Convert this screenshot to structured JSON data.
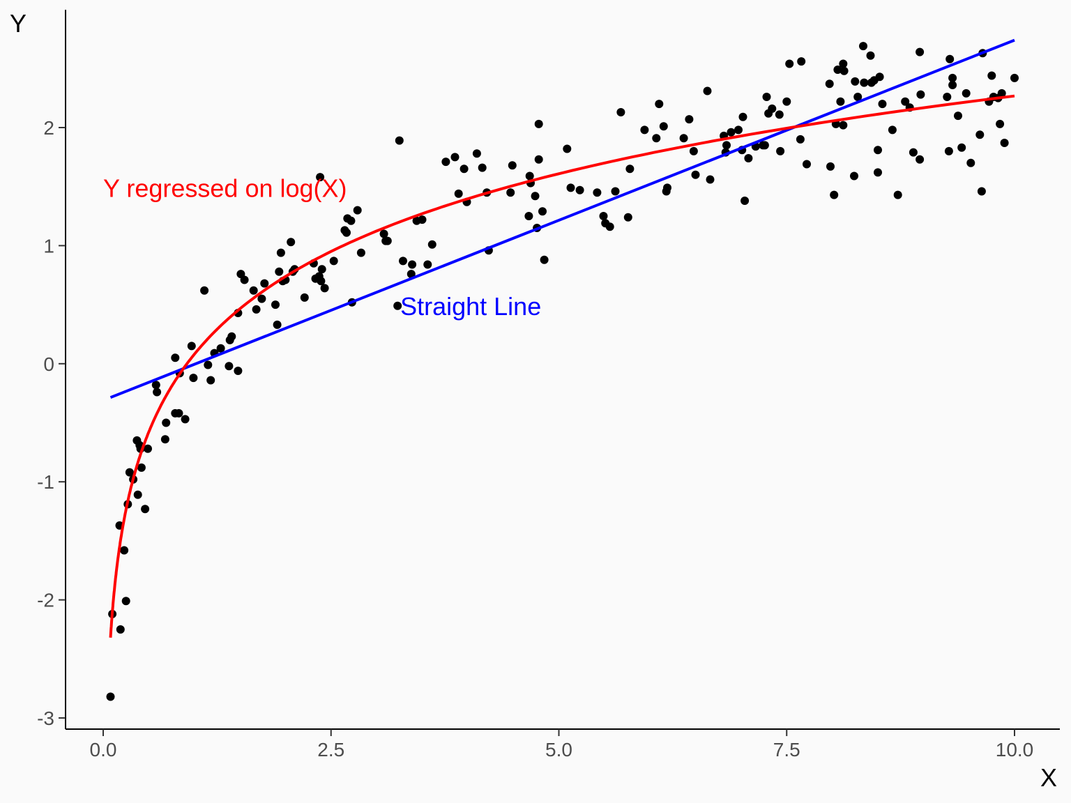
{
  "chart_data": {
    "type": "scatter",
    "title": "",
    "xlabel": "X",
    "ylabel": "Y",
    "xlim": [
      -0.2,
      10.2
    ],
    "ylim": [
      -3.1,
      3.0
    ],
    "xticks": [
      0,
      2.5,
      5,
      7.5,
      10
    ],
    "xtick_labels": [
      "0.0",
      "2.5",
      "5.0",
      "7.5",
      "10.0"
    ],
    "yticks": [
      -3,
      -2,
      -1,
      0,
      1,
      2
    ],
    "ytick_labels": [
      "-3",
      "-2",
      "-1",
      "0",
      "1",
      "2"
    ],
    "colors": {
      "points": "#000000",
      "straight": "#0000ff",
      "log": "#ff0000",
      "background": "#fafafa",
      "axis": "#000000"
    },
    "fits": {
      "straight": {
        "name": "Straight Line",
        "intercept": -0.31,
        "slope": 0.305,
        "x_range": [
          0.08,
          10
        ]
      },
      "log": {
        "name": "Y regressed on log(X)",
        "intercept": 0.08,
        "slope": 0.95,
        "x_range": [
          0.08,
          10
        ]
      }
    },
    "annotations": [
      {
        "key": "log",
        "text": "Y regressed on log(X)",
        "x": 0.0,
        "y": 1.49
      },
      {
        "key": "straight",
        "text": "Straight Line",
        "x": 3.26,
        "y": 0.49
      }
    ],
    "points": [
      [
        0.08,
        -2.82
      ],
      [
        0.1,
        -2.12
      ],
      [
        0.18,
        -1.37
      ],
      [
        0.19,
        -2.25
      ],
      [
        0.23,
        -1.58
      ],
      [
        0.25,
        -2.01
      ],
      [
        0.27,
        -1.19
      ],
      [
        0.29,
        -0.92
      ],
      [
        0.33,
        -0.98
      ],
      [
        0.37,
        -0.65
      ],
      [
        0.38,
        -1.11
      ],
      [
        0.4,
        -0.69
      ],
      [
        0.41,
        -0.72
      ],
      [
        0.42,
        -0.88
      ],
      [
        0.46,
        -1.23
      ],
      [
        0.49,
        -0.72
      ],
      [
        0.58,
        -0.18
      ],
      [
        0.59,
        -0.24
      ],
      [
        0.68,
        -0.64
      ],
      [
        0.69,
        -0.5
      ],
      [
        0.79,
        -0.42
      ],
      [
        0.79,
        0.05
      ],
      [
        0.83,
        -0.42
      ],
      [
        0.84,
        -0.08
      ],
      [
        0.9,
        -0.47
      ],
      [
        0.97,
        0.15
      ],
      [
        0.99,
        -0.12
      ],
      [
        1.11,
        0.62
      ],
      [
        1.15,
        -0.01
      ],
      [
        1.18,
        -0.14
      ],
      [
        1.22,
        0.09
      ],
      [
        1.29,
        0.13
      ],
      [
        1.38,
        -0.02
      ],
      [
        1.39,
        0.2
      ],
      [
        1.41,
        0.23
      ],
      [
        1.48,
        -0.06
      ],
      [
        1.48,
        0.43
      ],
      [
        1.51,
        0.76
      ],
      [
        1.55,
        0.71
      ],
      [
        1.65,
        0.62
      ],
      [
        1.68,
        0.46
      ],
      [
        1.74,
        0.55
      ],
      [
        1.77,
        0.68
      ],
      [
        1.89,
        0.5
      ],
      [
        1.91,
        0.33
      ],
      [
        1.93,
        0.78
      ],
      [
        1.95,
        0.94
      ],
      [
        1.97,
        0.7
      ],
      [
        2.0,
        0.71
      ],
      [
        2.06,
        1.03
      ],
      [
        2.08,
        0.78
      ],
      [
        2.1,
        0.8
      ],
      [
        2.21,
        0.56
      ],
      [
        2.31,
        0.85
      ],
      [
        2.33,
        0.72
      ],
      [
        2.37,
        0.74
      ],
      [
        2.38,
        1.58
      ],
      [
        2.39,
        0.7
      ],
      [
        2.4,
        0.8
      ],
      [
        2.43,
        0.64
      ],
      [
        2.53,
        0.87
      ],
      [
        2.65,
        1.13
      ],
      [
        2.67,
        1.11
      ],
      [
        2.68,
        1.23
      ],
      [
        2.72,
        1.21
      ],
      [
        2.73,
        0.52
      ],
      [
        2.79,
        1.3
      ],
      [
        2.83,
        0.94
      ],
      [
        3.08,
        1.1
      ],
      [
        3.1,
        1.04
      ],
      [
        3.12,
        1.04
      ],
      [
        3.23,
        0.49
      ],
      [
        3.25,
        1.89
      ],
      [
        3.29,
        0.87
      ],
      [
        3.38,
        0.76
      ],
      [
        3.39,
        0.84
      ],
      [
        3.44,
        1.21
      ],
      [
        3.5,
        1.22
      ],
      [
        3.56,
        0.84
      ],
      [
        3.61,
        1.01
      ],
      [
        3.76,
        1.71
      ],
      [
        3.86,
        1.75
      ],
      [
        3.9,
        1.44
      ],
      [
        3.96,
        1.65
      ],
      [
        3.99,
        1.37
      ],
      [
        4.1,
        1.78
      ],
      [
        4.16,
        1.66
      ],
      [
        4.21,
        1.45
      ],
      [
        4.23,
        0.96
      ],
      [
        4.47,
        1.45
      ],
      [
        4.49,
        1.68
      ],
      [
        4.67,
        1.25
      ],
      [
        4.68,
        1.59
      ],
      [
        4.69,
        1.53
      ],
      [
        4.74,
        1.42
      ],
      [
        4.76,
        1.15
      ],
      [
        4.78,
        1.73
      ],
      [
        4.78,
        2.03
      ],
      [
        4.82,
        1.29
      ],
      [
        4.84,
        0.88
      ],
      [
        5.09,
        1.82
      ],
      [
        5.13,
        1.49
      ],
      [
        5.23,
        1.47
      ],
      [
        5.42,
        1.45
      ],
      [
        5.49,
        1.25
      ],
      [
        5.51,
        1.19
      ],
      [
        5.56,
        1.16
      ],
      [
        5.62,
        1.46
      ],
      [
        5.68,
        2.13
      ],
      [
        5.76,
        1.24
      ],
      [
        5.78,
        1.65
      ],
      [
        5.94,
        1.98
      ],
      [
        6.07,
        1.91
      ],
      [
        6.1,
        2.2
      ],
      [
        6.15,
        2.01
      ],
      [
        6.18,
        1.46
      ],
      [
        6.19,
        1.49
      ],
      [
        6.37,
        1.91
      ],
      [
        6.43,
        2.07
      ],
      [
        6.48,
        1.8
      ],
      [
        6.5,
        1.6
      ],
      [
        6.63,
        2.31
      ],
      [
        6.66,
        1.56
      ],
      [
        6.81,
        1.93
      ],
      [
        6.83,
        1.79
      ],
      [
        6.84,
        1.85
      ],
      [
        6.89,
        1.96
      ],
      [
        6.97,
        1.98
      ],
      [
        7.02,
        2.09
      ],
      [
        7.01,
        1.81
      ],
      [
        7.04,
        1.38
      ],
      [
        7.08,
        1.74
      ],
      [
        7.16,
        1.84
      ],
      [
        7.24,
        1.85
      ],
      [
        7.26,
        1.85
      ],
      [
        7.28,
        2.26
      ],
      [
        7.3,
        2.12
      ],
      [
        7.34,
        2.16
      ],
      [
        7.42,
        2.11
      ],
      [
        7.43,
        1.8
      ],
      [
        7.5,
        2.22
      ],
      [
        7.53,
        2.54
      ],
      [
        7.65,
        1.9
      ],
      [
        7.66,
        2.56
      ],
      [
        7.72,
        1.69
      ],
      [
        7.97,
        2.37
      ],
      [
        7.98,
        1.67
      ],
      [
        8.02,
        1.43
      ],
      [
        8.04,
        2.03
      ],
      [
        8.06,
        2.49
      ],
      [
        8.09,
        2.22
      ],
      [
        8.12,
        2.54
      ],
      [
        8.13,
        2.48
      ],
      [
        8.12,
        2.02
      ],
      [
        8.24,
        1.59
      ],
      [
        8.25,
        2.39
      ],
      [
        8.28,
        2.26
      ],
      [
        8.34,
        2.69
      ],
      [
        8.35,
        2.38
      ],
      [
        8.42,
        2.61
      ],
      [
        8.43,
        2.38
      ],
      [
        8.46,
        2.4
      ],
      [
        8.5,
        1.81
      ],
      [
        8.5,
        1.62
      ],
      [
        8.52,
        2.43
      ],
      [
        8.55,
        2.2
      ],
      [
        8.66,
        1.98
      ],
      [
        8.72,
        1.43
      ],
      [
        8.8,
        2.22
      ],
      [
        8.85,
        2.17
      ],
      [
        8.89,
        1.79
      ],
      [
        8.96,
        2.64
      ],
      [
        8.96,
        1.73
      ],
      [
        8.97,
        2.28
      ],
      [
        9.26,
        2.26
      ],
      [
        9.28,
        1.8
      ],
      [
        9.29,
        2.58
      ],
      [
        9.32,
        2.42
      ],
      [
        9.32,
        2.36
      ],
      [
        9.38,
        2.1
      ],
      [
        9.42,
        1.83
      ],
      [
        9.47,
        2.29
      ],
      [
        9.52,
        1.7
      ],
      [
        9.62,
        1.94
      ],
      [
        9.64,
        1.46
      ],
      [
        9.65,
        2.63
      ],
      [
        9.72,
        2.22
      ],
      [
        9.75,
        2.44
      ],
      [
        9.77,
        2.26
      ],
      [
        9.82,
        2.25
      ],
      [
        9.84,
        2.03
      ],
      [
        9.86,
        2.29
      ],
      [
        9.89,
        1.87
      ],
      [
        10.0,
        2.42
      ]
    ]
  }
}
